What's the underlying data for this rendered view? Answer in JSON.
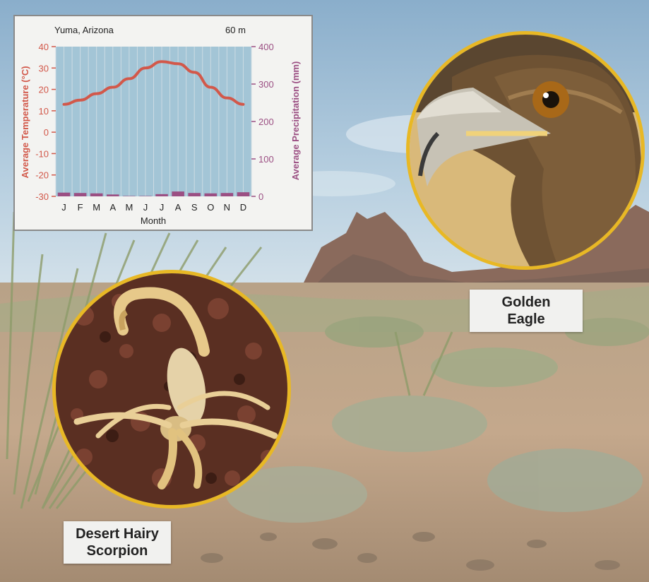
{
  "chart_data": {
    "type": "line",
    "title": "Yuma, Arizona",
    "subtitle": "60 m",
    "xlabel": "Month",
    "ylabel": "Average Temperature (°C)",
    "y2label": "Average Precipitation (mm)",
    "categories": [
      "J",
      "F",
      "M",
      "A",
      "M",
      "J",
      "J",
      "A",
      "S",
      "O",
      "N",
      "D"
    ],
    "ylim": [
      -30,
      40
    ],
    "y2lim": [
      0,
      400
    ],
    "yticks": [
      "40",
      "30",
      "20",
      "10",
      "0",
      "-10",
      "-20",
      "-30"
    ],
    "y2ticks": [
      "400",
      "300",
      "200",
      "100",
      "0"
    ],
    "series": [
      {
        "name": "Average Temperature (°C)",
        "axis": "left",
        "kind": "line",
        "color": "#d2584a",
        "values": [
          13,
          15,
          18,
          21,
          25,
          30,
          33,
          32,
          28,
          21,
          16,
          13
        ]
      },
      {
        "name": "Average Precipitation (mm)",
        "axis": "right",
        "kind": "bar",
        "color": "#9b4f83",
        "values": [
          10,
          9,
          8,
          5,
          1,
          1,
          6,
          13,
          9,
          8,
          9,
          11
        ]
      }
    ],
    "grid": true
  },
  "labels": {
    "eagle": "Golden Eagle",
    "scorpion": "Desert Hairy Scorpion"
  },
  "colors": {
    "temperature_axis": "#d2584a",
    "precipitation_axis": "#9b4f83",
    "inset_border": "#e8b825",
    "plot_bg": "#a3c5d6",
    "gridline": "#ccdbe3"
  }
}
